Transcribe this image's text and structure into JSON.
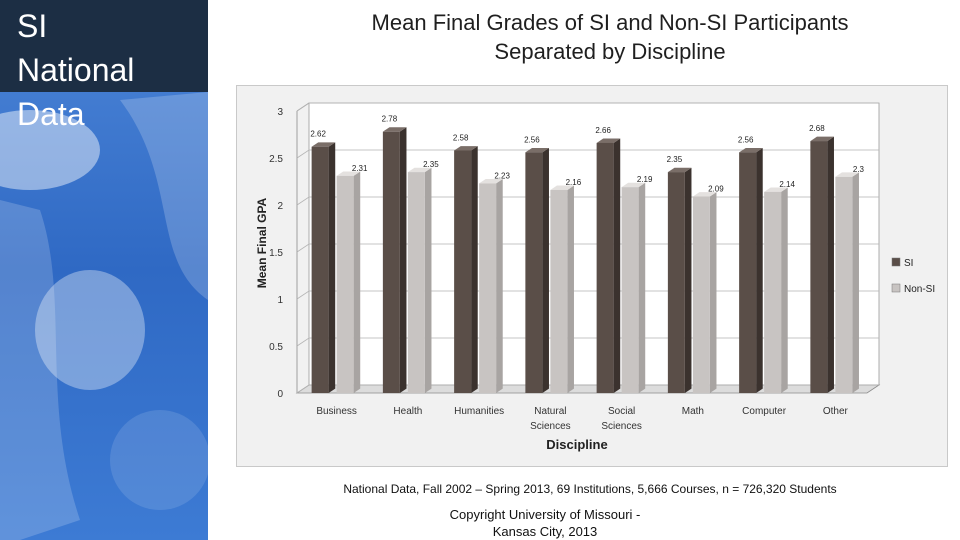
{
  "sidebar": {
    "title_lines": [
      "SI",
      "National",
      "Data"
    ],
    "background_color": "#3b78d0",
    "header_color": "#1c2e44"
  },
  "footnote": "National Data, Fall 2002 – Spring 2013, 69 Institutions, 5,666 Courses, n = 726,320 Students",
  "copyright_lines": [
    "Copyright University of Missouri -",
    "Kansas City, 2013"
  ],
  "chart_data": {
    "type": "bar",
    "title_lines": [
      "Mean Final Grades of SI and Non-SI Participants",
      "Separated by Discipline"
    ],
    "xlabel": "Discipline",
    "ylabel": "Mean Final GPA",
    "ylim": [
      0,
      3
    ],
    "yticks": [
      "0",
      "0.5",
      "1",
      "1.5",
      "2",
      "2.5",
      "3"
    ],
    "categories": [
      [
        "Business"
      ],
      [
        "Health"
      ],
      [
        "Humanities"
      ],
      [
        "Natural",
        "Sciences"
      ],
      [
        "Social",
        "Sciences"
      ],
      [
        "Math"
      ],
      [
        "Computer"
      ],
      [
        "Other"
      ]
    ],
    "series": [
      {
        "name": "SI",
        "color": "#5a4e48",
        "values": [
          2.62,
          2.78,
          2.58,
          2.56,
          2.66,
          2.35,
          2.56,
          2.68
        ],
        "labels": [
          "2.62",
          "2.78",
          "2.58",
          "2.56",
          "2.66",
          "2.35",
          "2.56",
          "2.68"
        ]
      },
      {
        "name": "Non-SI",
        "color": "#c8c4c2",
        "values": [
          2.31,
          2.35,
          2.23,
          2.16,
          2.19,
          2.09,
          2.14,
          2.3
        ],
        "labels": [
          "2.31",
          "2.35",
          "2.23",
          "2.16",
          "2.19",
          "2.09",
          "2.14",
          "2.3"
        ]
      }
    ],
    "grid": true,
    "legend_position": "right"
  }
}
